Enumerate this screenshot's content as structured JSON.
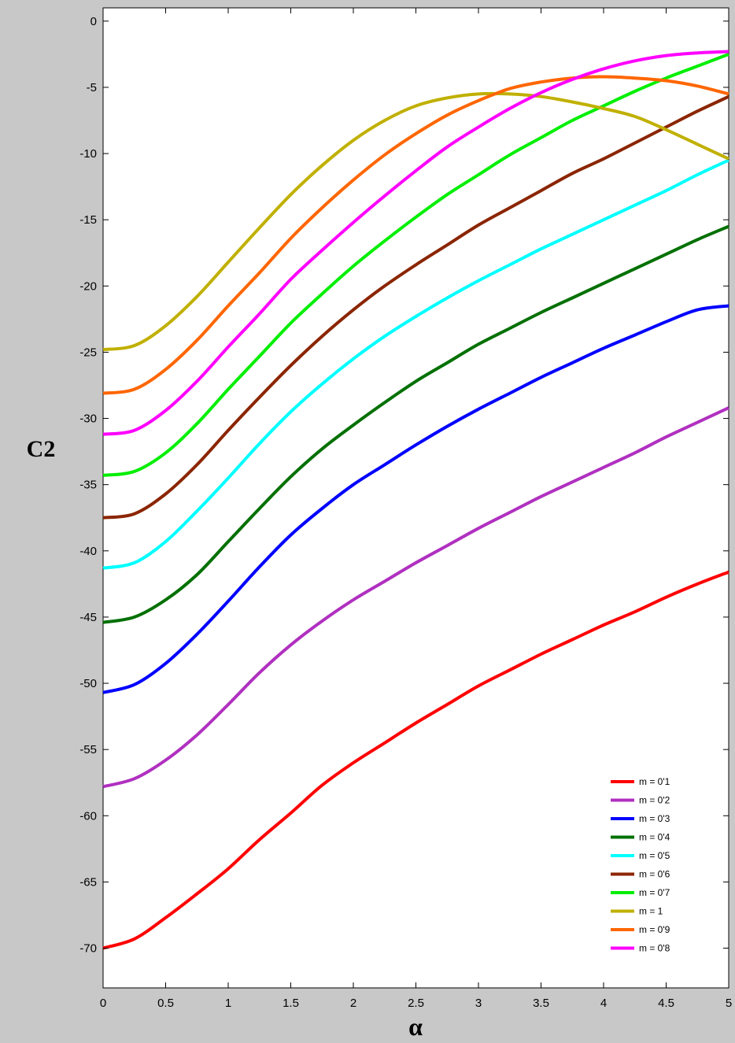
{
  "chart_data": {
    "type": "line",
    "title": "",
    "xlabel": "α",
    "ylabel": "C2",
    "xlim": [
      0,
      5
    ],
    "ylim": [
      -73,
      1
    ],
    "grid": false,
    "legend_position": "bottom-right",
    "x_ticks": [
      0,
      0.5,
      1,
      1.5,
      2,
      2.5,
      3,
      3.5,
      4,
      4.5,
      5
    ],
    "x_tick_labels": [
      "0",
      "0.5",
      "1",
      "1.5",
      "2",
      "2.5",
      "3",
      "3.5",
      "4",
      "4.5",
      "5"
    ],
    "y_ticks": [
      0,
      -5,
      -10,
      -15,
      -20,
      -25,
      -30,
      -35,
      -40,
      -45,
      -50,
      -55,
      -60,
      -65,
      -70
    ],
    "y_tick_labels": [
      "0",
      "-5",
      "-10",
      "-15",
      "-20",
      "-25",
      "-30",
      "-35",
      "-40",
      "-45",
      "-50",
      "-55",
      "-60",
      "-65",
      "-70"
    ],
    "x": [
      0,
      0.25,
      0.5,
      0.75,
      1,
      1.25,
      1.5,
      1.75,
      2,
      2.25,
      2.5,
      2.75,
      3,
      3.25,
      3.5,
      3.75,
      4,
      4.25,
      4.5,
      4.75,
      5
    ],
    "series": [
      {
        "name": "m = 0'1",
        "color": "#ff0000",
        "values": [
          -70.0,
          -69.3,
          -67.7,
          -65.9,
          -64.0,
          -61.8,
          -59.8,
          -57.7,
          -56.0,
          -54.5,
          -53.0,
          -51.6,
          -50.2,
          -49.0,
          -47.8,
          -46.7,
          -45.6,
          -44.6,
          -43.5,
          -42.5,
          -41.6
        ]
      },
      {
        "name": "m = 0'2",
        "color": "#b030c0",
        "values": [
          -57.8,
          -57.2,
          -55.8,
          -53.9,
          -51.6,
          -49.2,
          -47.1,
          -45.3,
          -43.7,
          -42.3,
          -40.9,
          -39.6,
          -38.3,
          -37.1,
          -35.9,
          -34.8,
          -33.7,
          -32.6,
          -31.4,
          -30.3,
          -29.2
        ]
      },
      {
        "name": "m = 0'3",
        "color": "#0000ff",
        "values": [
          -50.7,
          -50.1,
          -48.5,
          -46.3,
          -43.8,
          -41.2,
          -38.8,
          -36.8,
          -35.0,
          -33.5,
          -32.0,
          -30.6,
          -29.3,
          -28.1,
          -26.9,
          -25.8,
          -24.7,
          -23.7,
          -22.7,
          -21.8,
          -21.5
        ]
      },
      {
        "name": "m = 0'4",
        "color": "#007000",
        "values": [
          -45.4,
          -45.0,
          -43.7,
          -41.8,
          -39.3,
          -36.8,
          -34.4,
          -32.3,
          -30.5,
          -28.8,
          -27.2,
          -25.8,
          -24.4,
          -23.2,
          -22.0,
          -20.9,
          -19.8,
          -18.7,
          -17.6,
          -16.5,
          -15.5
        ]
      },
      {
        "name": "m = 0'5",
        "color": "#00ffff",
        "values": [
          -41.3,
          -40.9,
          -39.3,
          -37.0,
          -34.5,
          -31.9,
          -29.5,
          -27.4,
          -25.5,
          -23.8,
          -22.3,
          -20.9,
          -19.6,
          -18.4,
          -17.2,
          -16.1,
          -15.0,
          -13.9,
          -12.8,
          -11.6,
          -10.5
        ]
      },
      {
        "name": "m = 0'6",
        "color": "#8b2500",
        "values": [
          -37.5,
          -37.2,
          -35.7,
          -33.5,
          -30.9,
          -28.4,
          -26.0,
          -23.8,
          -21.8,
          -20.0,
          -18.4,
          -16.9,
          -15.4,
          -14.1,
          -12.8,
          -11.5,
          -10.4,
          -9.2,
          -8.0,
          -6.8,
          -5.7
        ]
      },
      {
        "name": "m = 0'7",
        "color": "#00ee00",
        "values": [
          -34.3,
          -34.0,
          -32.6,
          -30.4,
          -27.8,
          -25.3,
          -22.8,
          -20.6,
          -18.5,
          -16.6,
          -14.8,
          -13.1,
          -11.6,
          -10.1,
          -8.8,
          -7.5,
          -6.4,
          -5.3,
          -4.3,
          -3.4,
          -2.5
        ]
      },
      {
        "name": "m = 1",
        "color": "#c0b000",
        "values": [
          -24.8,
          -24.5,
          -23.0,
          -20.8,
          -18.2,
          -15.6,
          -13.1,
          -10.9,
          -9.0,
          -7.5,
          -6.4,
          -5.8,
          -5.5,
          -5.5,
          -5.7,
          -6.1,
          -6.6,
          -7.2,
          -8.2,
          -9.3,
          -10.4
        ]
      },
      {
        "name": "m = 0'9",
        "color": "#ff6600",
        "values": [
          -28.1,
          -27.8,
          -26.3,
          -24.1,
          -21.5,
          -19.0,
          -16.4,
          -14.1,
          -12.0,
          -10.1,
          -8.5,
          -7.1,
          -6.0,
          -5.1,
          -4.6,
          -4.3,
          -4.2,
          -4.3,
          -4.5,
          -4.9,
          -5.5
        ]
      },
      {
        "name": "m = 0'8",
        "color": "#ff00ff",
        "values": [
          -31.2,
          -30.9,
          -29.4,
          -27.2,
          -24.6,
          -22.1,
          -19.5,
          -17.3,
          -15.2,
          -13.2,
          -11.3,
          -9.5,
          -8.0,
          -6.6,
          -5.4,
          -4.4,
          -3.6,
          -3.0,
          -2.6,
          -2.4,
          -2.3
        ]
      }
    ]
  }
}
